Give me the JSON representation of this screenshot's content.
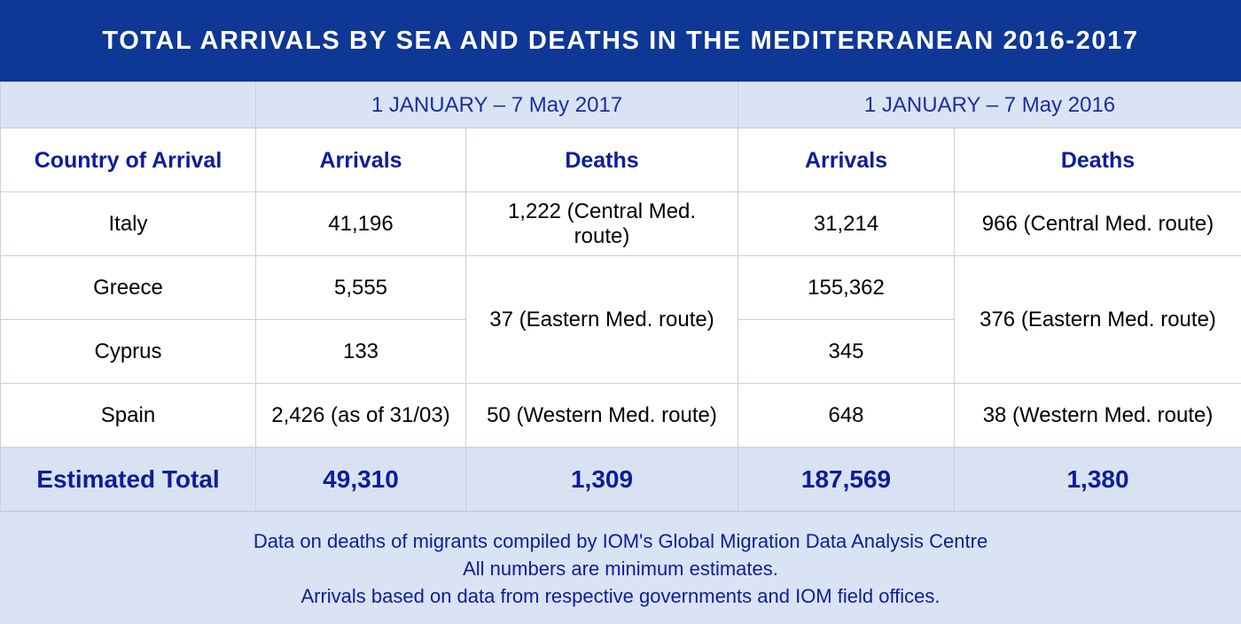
{
  "title": "TOTAL ARRIVALS BY SEA AND DEATHS IN THE MEDITERRANEAN 2016-2017",
  "periods": {
    "p2017": "1 JANUARY – 7 May 2017",
    "p2016": "1 JANUARY – 7 May 2016"
  },
  "headers": {
    "country": "Country of Arrival",
    "arrivals_2017": "Arrivals",
    "deaths_2017": "Deaths",
    "arrivals_2016": "Arrivals",
    "deaths_2016": "Deaths"
  },
  "rows": {
    "italy": {
      "country": "Italy",
      "arrivals_2017": "41,196",
      "deaths_2017_line1": "1,222 (Central Med.",
      "deaths_2017_line2": "route)",
      "arrivals_2016": "31,214",
      "deaths_2016": "966 (Central Med. route)"
    },
    "greece": {
      "country": "Greece",
      "arrivals_2017": "5,555",
      "arrivals_2016": "155,362"
    },
    "cyprus": {
      "country": "Cyprus",
      "arrivals_2017": "133",
      "arrivals_2016": "345"
    },
    "eastern": {
      "deaths_2017": "37 (Eastern Med. route)",
      "deaths_2016": "376 (Eastern Med. route)"
    },
    "spain": {
      "country": "Spain",
      "arrivals_2017": "2,426 (as of 31/03)",
      "deaths_2017": "50 (Western Med. route)",
      "arrivals_2016": "648",
      "deaths_2016": "38 (Western Med. route)"
    }
  },
  "total": {
    "label": "Estimated Total",
    "arrivals_2017": "49,310",
    "deaths_2017": "1,309",
    "arrivals_2016": "187,569",
    "deaths_2016": "1,380"
  },
  "footer": {
    "line1": "Data on deaths of migrants compiled by IOM's Global Migration Data Analysis Centre",
    "line2": "All numbers are minimum estimates.",
    "line3": "Arrivals based on data from respective governments and IOM field offices."
  },
  "colors": {
    "title_bg": "#0e3796",
    "header_text": "#0c1d9a",
    "period_bg": "#dae3f4"
  }
}
